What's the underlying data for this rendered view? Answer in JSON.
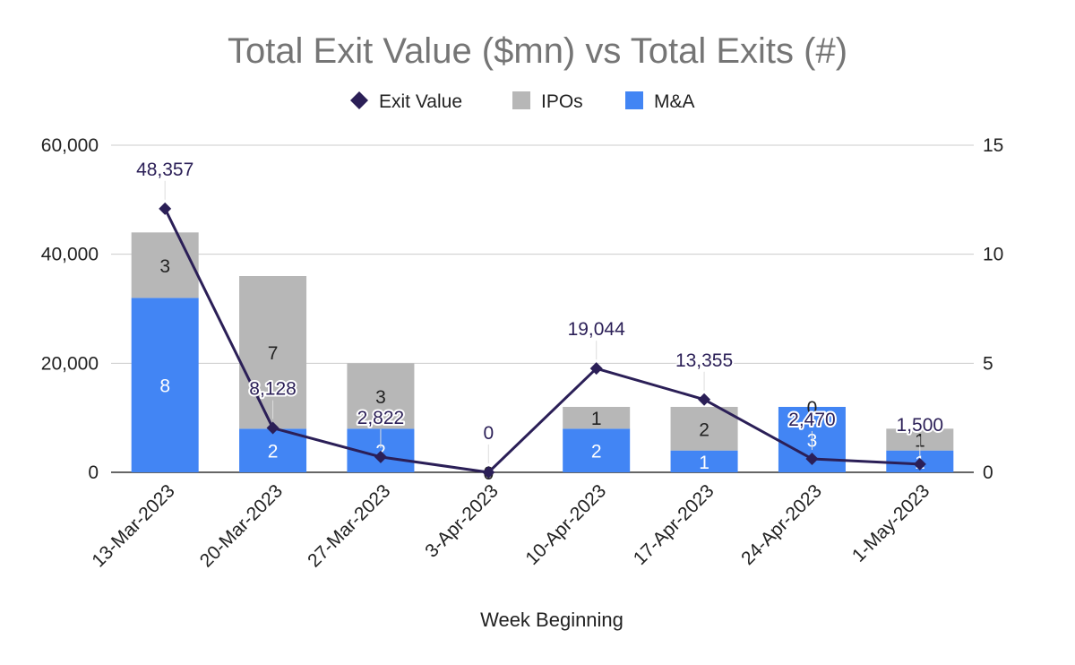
{
  "chart_data": {
    "type": "bar",
    "title": "Total Exit Value ($mn) vs Total Exits (#)",
    "xlabel": "Week Beginning",
    "ylabel_left": "",
    "ylabel_right": "",
    "categories": [
      "13-Mar-2023",
      "20-Mar-2023",
      "27-Mar-2023",
      "3-Apr-2023",
      "10-Apr-2023",
      "17-Apr-2023",
      "24-Apr-2023",
      "1-May-2023"
    ],
    "series": [
      {
        "name": "M&A",
        "kind": "stacked-bar",
        "axis": "right",
        "color": "#4285f4",
        "values": [
          8,
          2,
          2,
          0,
          2,
          1,
          3,
          1
        ],
        "labels": [
          "8",
          "2",
          "2",
          "",
          "2",
          "1",
          "3",
          "1"
        ]
      },
      {
        "name": "IPOs",
        "kind": "stacked-bar",
        "axis": "right",
        "color": "#b7b7b7",
        "values": [
          3,
          7,
          3,
          0,
          1,
          2,
          0,
          1
        ],
        "labels": [
          "3",
          "7",
          "3",
          "0",
          "1",
          "2",
          "0",
          "1"
        ]
      },
      {
        "name": "Exit Value",
        "kind": "line",
        "axis": "left",
        "color": "#2b1f57",
        "values": [
          48357,
          8128,
          2822,
          0,
          19044,
          13355,
          2470,
          1500
        ],
        "labels": [
          "48,357",
          "8,128",
          "2,822",
          "0",
          "19,044",
          "13,355",
          "2,470",
          "1,500"
        ]
      }
    ],
    "legend": [
      {
        "name": "Exit Value",
        "marker": "diamond",
        "color": "#2b1f57"
      },
      {
        "name": "IPOs",
        "marker": "square",
        "color": "#b7b7b7"
      },
      {
        "name": "M&A",
        "marker": "square",
        "color": "#4285f4"
      }
    ],
    "legend_position": "top",
    "y_left": {
      "ylim": [
        0,
        60000
      ],
      "ticks": [
        0,
        20000,
        40000,
        60000
      ],
      "tick_labels": [
        "0",
        "20,000",
        "40,000",
        "60,000"
      ]
    },
    "y_right": {
      "ylim": [
        0,
        15
      ],
      "ticks": [
        0,
        5,
        10,
        15
      ],
      "tick_labels": [
        "0",
        "5",
        "10",
        "15"
      ]
    },
    "grid": true
  }
}
